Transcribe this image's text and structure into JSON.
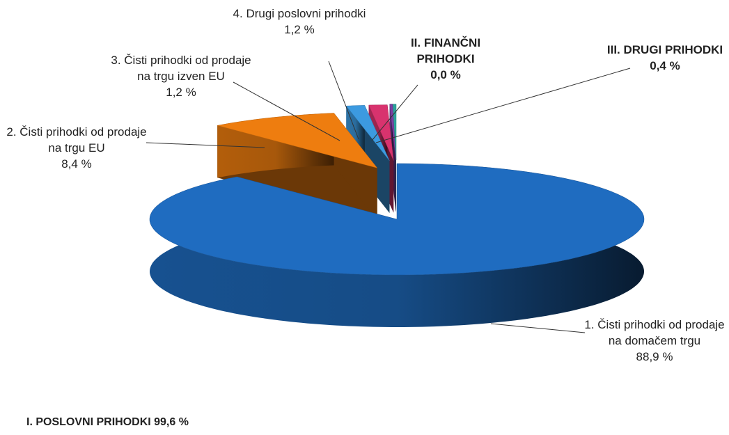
{
  "chart_data": {
    "type": "pie3d",
    "categories": [
      "1. Čisti prihodki od prodaje na domačem trgu",
      "2. Čisti prihodki od prodaje na trgu EU",
      "3. Čisti prihodki od prodaje na trgu izven EU",
      "4. Drugi poslovni prihodki",
      "II. FINANČNI PRIHODKI",
      "III. DRUGI PRIHODKI"
    ],
    "values": [
      88.9,
      8.4,
      1.2,
      1.2,
      0.0,
      0.4
    ],
    "value_labels": [
      "88,9 %",
      "8,4 %",
      "1,2 %",
      "1,2 %",
      "0,0 %",
      "0,4 %"
    ],
    "colors": [
      "#1f6cc0",
      "#ee7d0f",
      "#3c9ae0",
      "#d8336e",
      "#7b3fa2",
      "#2ba39a"
    ],
    "label_bold": [
      false,
      false,
      false,
      false,
      true,
      true
    ],
    "annotation": "I. POSLOVNI PRIHODKI 99,6 %"
  }
}
